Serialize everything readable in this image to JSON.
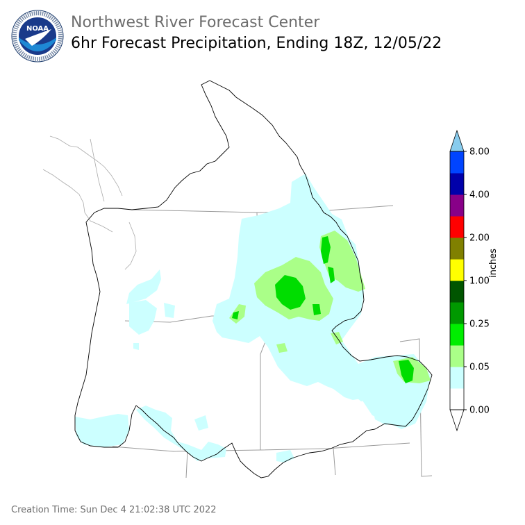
{
  "header": {
    "agency": "Northwest River Forecast Center",
    "product": "6hr Forecast Precipitation, Ending 18Z, 12/05/22",
    "logo_text": "NOAA",
    "logo_ring_text": "NATIONAL OCEANIC AND ATMOSPHERIC ADMINISTRATION",
    "logo_ring_bottom": "U.S. DEPARTMENT OF COMMERCE"
  },
  "colorbar": {
    "unit": "inches",
    "ticks": [
      "0.00",
      "0.05",
      "0.25",
      "1.00",
      "2.00",
      "4.00",
      "8.00"
    ],
    "colors": [
      "#ffffff",
      "#ccffff",
      "#aaff88",
      "#00ee00",
      "#009900",
      "#005500",
      "#ffff00",
      "#808000",
      "#ff0000",
      "#880088",
      "#0000aa",
      "#0044ff",
      "#88ccee"
    ]
  },
  "footer": {
    "creation": "Creation Time: Sun Dec 4 21:02:38 UTC 2022"
  }
}
